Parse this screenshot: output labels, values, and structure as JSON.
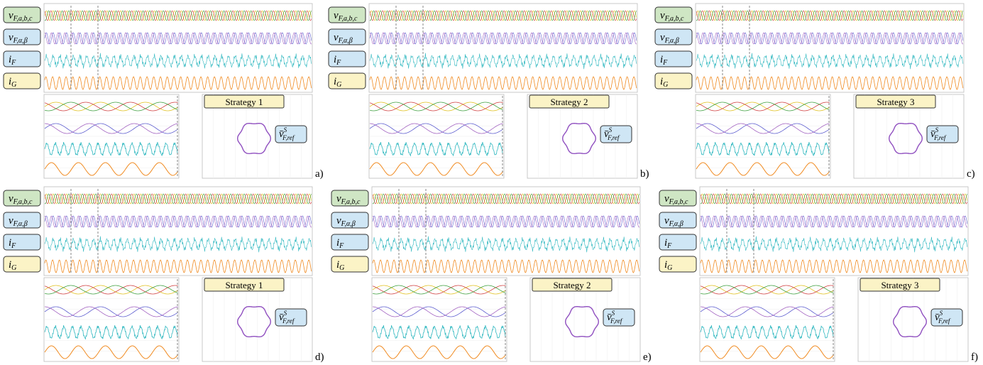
{
  "panels": [
    {
      "tag": "a)",
      "strategy": "Strategy 1"
    },
    {
      "tag": "b)",
      "strategy": "Strategy 2"
    },
    {
      "tag": "c)",
      "strategy": "Strategy 3"
    },
    {
      "tag": "d)",
      "strategy": "Strategy 1"
    },
    {
      "tag": "e)",
      "strategy": "Strategy 2"
    },
    {
      "tag": "f)",
      "strategy": "Strategy 3"
    }
  ],
  "signals": [
    {
      "main": "v",
      "sub": "F,a,b,c"
    },
    {
      "main": "v",
      "sub": "F,α,β"
    },
    {
      "main": "i",
      "sub": "F"
    },
    {
      "main": "i",
      "sub": "G"
    }
  ],
  "reference": {
    "main": "v̄",
    "sup": "S",
    "sub": "F,ref"
  }
}
